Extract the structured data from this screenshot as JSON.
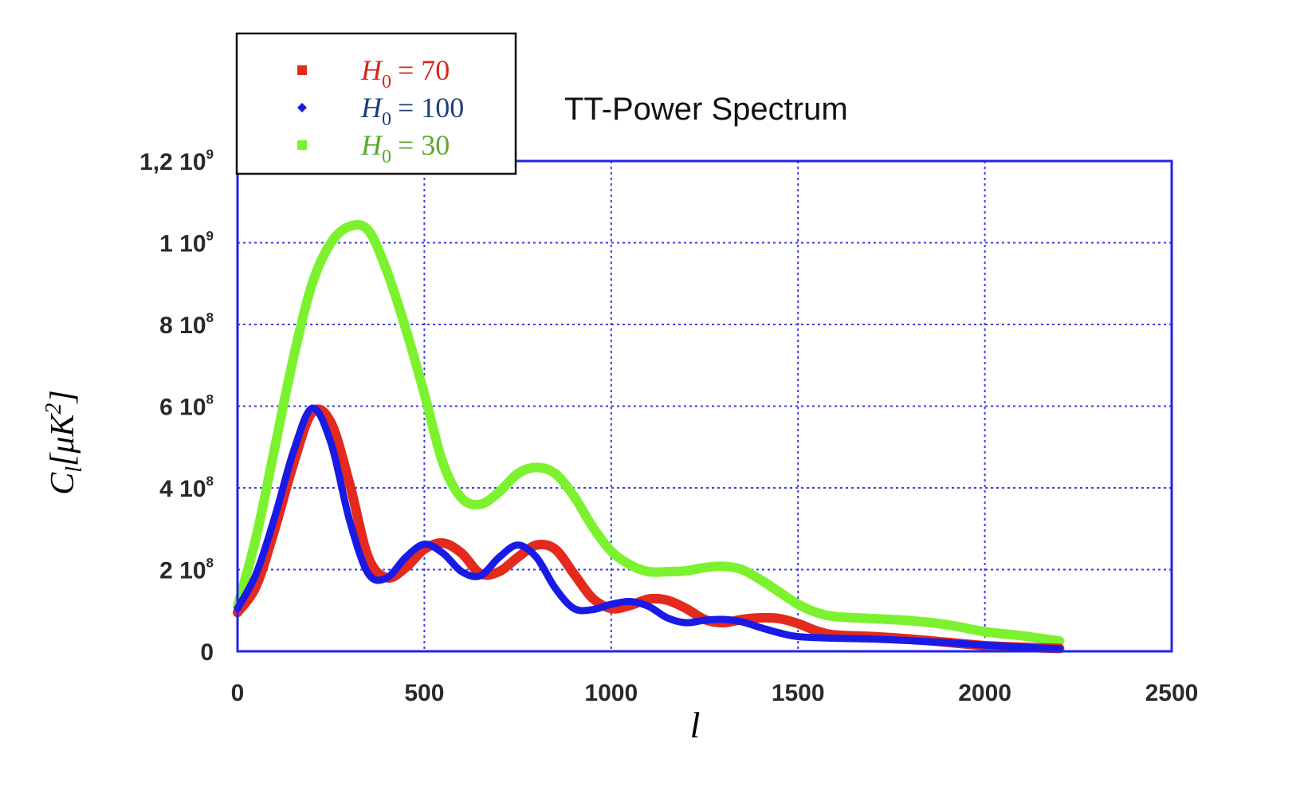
{
  "chart_data": {
    "type": "line",
    "title": "TT-Power Spectrum",
    "xlabel": "l",
    "ylabel": "C_l[μK^2]",
    "xlim": [
      0,
      2500
    ],
    "ylim": [
      0,
      1200000000.0
    ],
    "grid": true,
    "legend_position": "top-left",
    "x_ticks": [
      "0",
      "500",
      "1000",
      "1500",
      "2000",
      "2500"
    ],
    "x_tick_values": [
      0,
      500,
      1000,
      1500,
      2000,
      2500
    ],
    "y_ticks": [
      {
        "value": 0,
        "mantissa": "0",
        "exponent": ""
      },
      {
        "value": 200000000.0,
        "mantissa": "2 10",
        "exponent": "8"
      },
      {
        "value": 400000000.0,
        "mantissa": "4 10",
        "exponent": "8"
      },
      {
        "value": 600000000.0,
        "mantissa": "6 10",
        "exponent": "8"
      },
      {
        "value": 800000000.0,
        "mantissa": "8 10",
        "exponent": "8"
      },
      {
        "value": 1000000000.0,
        "mantissa": "1 10",
        "exponent": "9"
      },
      {
        "value": 1200000000.0,
        "mantissa": "1,2 10",
        "exponent": "9"
      }
    ],
    "series": [
      {
        "name": "H0 = 70",
        "label_symbol": "H",
        "label_sub": "0",
        "label_value": "= 70",
        "marker": "square",
        "color": "#e32a1c",
        "x": [
          0,
          50,
          100,
          150,
          200,
          250,
          300,
          350,
          400,
          450,
          500,
          550,
          600,
          650,
          700,
          750,
          800,
          850,
          900,
          950,
          1000,
          1050,
          1100,
          1150,
          1200,
          1250,
          1300,
          1350,
          1400,
          1450,
          1500,
          1550,
          1600,
          1700,
          1800,
          1900,
          2000,
          2100,
          2200
        ],
        "y": [
          95000000.0,
          160000000.0,
          300000000.0,
          460000000.0,
          585000000.0,
          560000000.0,
          410000000.0,
          230000000.0,
          180000000.0,
          205000000.0,
          250000000.0,
          265000000.0,
          240000000.0,
          190000000.0,
          195000000.0,
          230000000.0,
          260000000.0,
          250000000.0,
          190000000.0,
          130000000.0,
          105000000.0,
          112000000.0,
          128000000.0,
          125000000.0,
          105000000.0,
          78000000.0,
          70000000.0,
          78000000.0,
          82000000.0,
          80000000.0,
          68000000.0,
          50000000.0,
          40000000.0,
          36000000.0,
          30000000.0,
          22000000.0,
          14000000.0,
          10000000.0,
          7000000.0
        ]
      },
      {
        "name": "H0 = 100",
        "label_symbol": "H",
        "label_sub": "0",
        "label_value": "= 100",
        "marker": "diamond",
        "color": "#1a1ae6",
        "x": [
          0,
          50,
          100,
          150,
          200,
          250,
          300,
          350,
          400,
          450,
          500,
          550,
          600,
          650,
          700,
          750,
          800,
          850,
          900,
          950,
          1000,
          1050,
          1100,
          1150,
          1200,
          1250,
          1300,
          1350,
          1400,
          1450,
          1500,
          1600,
          1700,
          1800,
          1900,
          2000,
          2100,
          2200
        ],
        "y": [
          105000000.0,
          190000000.0,
          330000000.0,
          490000000.0,
          595000000.0,
          510000000.0,
          320000000.0,
          190000000.0,
          180000000.0,
          230000000.0,
          262000000.0,
          240000000.0,
          195000000.0,
          185000000.0,
          230000000.0,
          260000000.0,
          230000000.0,
          155000000.0,
          105000000.0,
          102000000.0,
          115000000.0,
          122000000.0,
          110000000.0,
          82000000.0,
          70000000.0,
          76000000.0,
          78000000.0,
          72000000.0,
          58000000.0,
          45000000.0,
          36000000.0,
          32000000.0,
          30000000.0,
          26000000.0,
          21000000.0,
          15000000.0,
          10000000.0,
          6000000.0
        ]
      },
      {
        "name": "H0 = 30",
        "label_symbol": "H",
        "label_sub": "0",
        "label_value": "= 30",
        "marker": "square",
        "color": "#7cf22f",
        "x": [
          0,
          50,
          100,
          150,
          200,
          250,
          300,
          350,
          400,
          450,
          500,
          550,
          600,
          650,
          700,
          750,
          800,
          850,
          900,
          950,
          1000,
          1050,
          1100,
          1150,
          1200,
          1250,
          1300,
          1350,
          1400,
          1450,
          1500,
          1550,
          1600,
          1700,
          1800,
          1900,
          2000,
          2100,
          2200
        ],
        "y": [
          110000000.0,
          280000000.0,
          500000000.0,
          720000000.0,
          900000000.0,
          1000000000.0,
          1040000000.0,
          1030000000.0,
          930000000.0,
          790000000.0,
          630000000.0,
          460000000.0,
          375000000.0,
          360000000.0,
          390000000.0,
          435000000.0,
          450000000.0,
          435000000.0,
          380000000.0,
          305000000.0,
          245000000.0,
          212000000.0,
          195000000.0,
          195000000.0,
          197000000.0,
          205000000.0,
          208000000.0,
          200000000.0,
          175000000.0,
          145000000.0,
          115000000.0,
          95000000.0,
          85000000.0,
          80000000.0,
          75000000.0,
          65000000.0,
          48000000.0,
          38000000.0,
          25000000.0
        ]
      }
    ]
  }
}
